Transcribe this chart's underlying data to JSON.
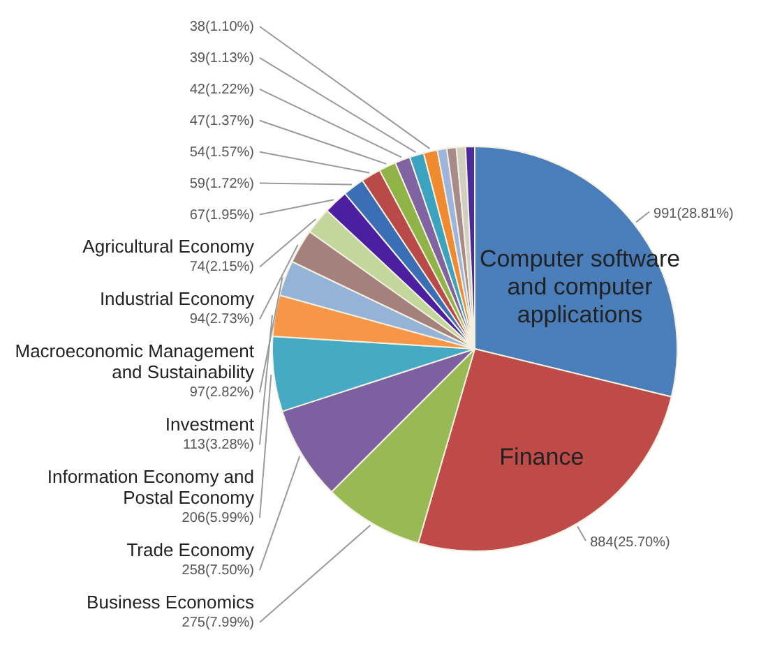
{
  "chart_data": {
    "type": "pie",
    "categories": [
      "Computer software and computer applications",
      "Finance",
      "Business Economics",
      "Trade Economy",
      "Information Economy and Postal Economy",
      "Investment",
      "Macroeconomic Management and Sustainability",
      "Industrial Economy",
      "Agricultural Economy",
      null,
      null,
      null,
      null,
      null,
      null,
      null,
      null,
      null,
      null,
      null
    ],
    "values": [
      991,
      884,
      275,
      258,
      206,
      113,
      97,
      94,
      74,
      67,
      59,
      54,
      47,
      42,
      39,
      38,
      26,
      26,
      25,
      25
    ],
    "value_labels": [
      "991(28.81%)",
      "884(25.70%)",
      "275(7.99%)",
      "258(7.50%)",
      "206(5.99%)",
      "113(3.28%)",
      "97(2.82%)",
      "94(2.73%)",
      "74(2.15%)",
      "67(1.95%)",
      "59(1.72%)",
      "54(1.57%)",
      "47(1.37%)",
      "42(1.22%)",
      "39(1.13%)",
      "38(1.10%)",
      null,
      null,
      null,
      null
    ],
    "colors": [
      "#4a7ebb",
      "#be4b48",
      "#98b954",
      "#7d60a0",
      "#46aac5",
      "#f79646",
      "#95b3d7",
      "#a5817e",
      "#c3d69b",
      "#4b1fa0",
      "#3a6fb5",
      "#b94a48",
      "#8fb347",
      "#8064a2",
      "#3ba3c0",
      "#f08a30",
      "#9db4dc",
      "#a78a8a",
      "#d0cfc0",
      "#4b2a9a"
    ]
  }
}
